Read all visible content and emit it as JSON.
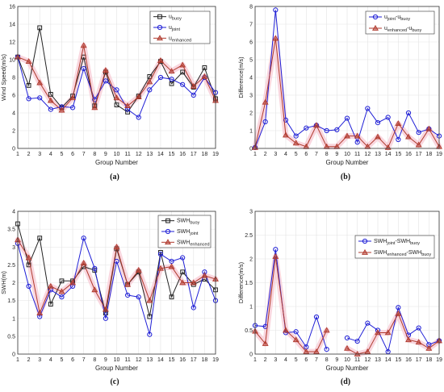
{
  "colors": {
    "buoy": "#222222",
    "joint": "#1f1fd6",
    "enhanced": "#b03a2e",
    "highlight": "#f7c9d4"
  },
  "chart_data": [
    {
      "id": "a",
      "type": "line",
      "panel_label": "(a)",
      "xlabel": "Group Number",
      "ylabel": "Wind Speed(m/s)",
      "x": [
        1,
        2,
        3,
        4,
        5,
        6,
        7,
        8,
        9,
        10,
        11,
        12,
        13,
        14,
        15,
        16,
        17,
        18,
        19
      ],
      "xticks": [
        "1",
        "2",
        "3",
        "4",
        "5",
        "6",
        "7",
        "8",
        "9",
        "10",
        "11",
        "12",
        "13",
        "14",
        "15",
        "16",
        "17",
        "18",
        "19"
      ],
      "xlim": [
        1,
        19
      ],
      "ylim": [
        0,
        16
      ],
      "yticks": [
        "0",
        "2",
        "4",
        "6",
        "8",
        "10",
        "12",
        "14",
        "16"
      ],
      "grid": true,
      "legend_position": "top-right",
      "series": [
        {
          "name": "u",
          "sub": "buoy",
          "key": "buoy",
          "marker": "square",
          "values": [
            10.3,
            7.1,
            13.6,
            6.1,
            4.6,
            5.9,
            10.3,
            4.8,
            8.6,
            4.9,
            4.1,
            5.9,
            8.1,
            9.8,
            7.3,
            8.6,
            6.9,
            9.1,
            5.6
          ]
        },
        {
          "name": "u",
          "sub": "joint",
          "key": "joint",
          "marker": "circle",
          "values": [
            10.3,
            5.6,
            5.7,
            4.4,
            4.7,
            4.6,
            9.0,
            5.5,
            7.6,
            6.6,
            4.4,
            3.5,
            6.6,
            8.0,
            7.8,
            7.2,
            6.0,
            8.0,
            6.3
          ]
        },
        {
          "name": "u",
          "sub": "enhanced",
          "key": "enhanced",
          "marker": "triangle",
          "values": [
            10.3,
            9.8,
            7.4,
            5.4,
            4.3,
            5.7,
            11.6,
            4.6,
            8.8,
            5.7,
            4.8,
            5.8,
            7.5,
            9.9,
            8.7,
            9.4,
            7.0,
            8.1,
            5.4
          ]
        }
      ]
    },
    {
      "id": "b",
      "type": "line",
      "panel_label": "(b)",
      "xlabel": "Group Number",
      "ylabel": "Difference(m/s)",
      "x": [
        1,
        2,
        3,
        4,
        5,
        6,
        7,
        8,
        9,
        10,
        11,
        12,
        13,
        14,
        15,
        16,
        17,
        18,
        19
      ],
      "xticks": [
        "1",
        "2",
        "3",
        "4",
        "5",
        "6",
        "7",
        "8",
        "9",
        "10",
        "11",
        "12",
        "13",
        "14",
        "15",
        "16",
        "17",
        "18",
        "19"
      ],
      "xlim": [
        1,
        19
      ],
      "ylim": [
        0,
        8
      ],
      "yticks": [
        "0",
        "1",
        "2",
        "3",
        "4",
        "5",
        "6",
        "7",
        "8"
      ],
      "grid": true,
      "legend_position": "top-right",
      "series": [
        {
          "name": "u",
          "sub": "joint",
          "sub2": "buoy",
          "key": "joint",
          "marker": "circle",
          "values": [
            0.05,
            1.5,
            7.8,
            1.6,
            0.7,
            1.15,
            1.3,
            1.0,
            1.05,
            1.7,
            0.35,
            2.25,
            1.45,
            1.75,
            0.5,
            2.0,
            0.9,
            1.1,
            0.7
          ]
        },
        {
          "name": "u",
          "sub": "enhanced",
          "sub2": "buoy",
          "key": "enhanced",
          "marker": "triangle",
          "values": [
            0.05,
            2.6,
            6.2,
            0.75,
            0.3,
            0.1,
            1.3,
            0.1,
            0.1,
            0.7,
            0.7,
            0.1,
            0.65,
            0.05,
            1.4,
            0.65,
            0.2,
            1.1,
            0.1
          ]
        }
      ]
    },
    {
      "id": "c",
      "type": "line",
      "panel_label": "(c)",
      "xlabel": "Group Number",
      "ylabel": "SWH(m)",
      "x": [
        1,
        2,
        3,
        4,
        5,
        6,
        7,
        8,
        9,
        10,
        11,
        12,
        13,
        14,
        15,
        16,
        17,
        18,
        19
      ],
      "xticks": [
        "1",
        "2",
        "3",
        "4",
        "5",
        "6",
        "7",
        "8",
        "9",
        "10",
        "11",
        "12",
        "13",
        "14",
        "15",
        "16",
        "17",
        "18",
        "19"
      ],
      "xlim": [
        1,
        19
      ],
      "ylim": [
        0,
        4
      ],
      "yticks": [
        "0",
        "0.5",
        "1",
        "1.5",
        "2",
        "2.5",
        "3",
        "3.5",
        "4"
      ],
      "grid": true,
      "legend_position": "top-right",
      "series": [
        {
          "name": "SWH",
          "sub": "buoy",
          "key": "buoy",
          "marker": "square",
          "values": [
            3.65,
            2.5,
            3.25,
            1.4,
            2.05,
            2.05,
            2.45,
            2.35,
            1.15,
            2.95,
            1.95,
            2.3,
            1.05,
            2.85,
            1.6,
            2.3,
            1.95,
            2.1,
            1.8
          ]
        },
        {
          "name": "SWH",
          "sub": "joint",
          "key": "joint",
          "marker": "circle",
          "values": [
            3.1,
            1.9,
            1.05,
            1.8,
            1.6,
            1.9,
            3.25,
            2.4,
            1.0,
            2.6,
            1.65,
            1.6,
            0.55,
            2.8,
            2.6,
            2.7,
            1.3,
            2.3,
            1.5
          ]
        },
        {
          "name": "SWH",
          "sub": "enhanced",
          "key": "enhanced",
          "marker": "triangle",
          "values": [
            3.2,
            2.7,
            1.15,
            1.9,
            1.75,
            2.0,
            2.55,
            1.8,
            1.25,
            3.0,
            1.95,
            2.35,
            1.5,
            2.4,
            2.45,
            2.0,
            2.0,
            2.2,
            2.1
          ]
        }
      ]
    },
    {
      "id": "d",
      "type": "line",
      "panel_label": "(d)",
      "xlabel": "Group Number",
      "ylabel": "Difference(m/s)",
      "x": [
        1,
        2,
        3,
        4,
        5,
        6,
        7,
        8,
        9,
        10,
        11,
        12,
        13,
        14,
        15,
        16,
        17,
        18,
        19
      ],
      "xticks": [
        "1",
        "2",
        "3",
        "4",
        "5",
        "6",
        "7",
        "8",
        "9",
        "10",
        "11",
        "12",
        "13",
        "14",
        "15",
        "16",
        "17",
        "18",
        "19"
      ],
      "xlim": [
        1,
        19
      ],
      "ylim": [
        0,
        3
      ],
      "yticks": [
        "0",
        "0.5",
        "1",
        "1.5",
        "2",
        "2.5",
        "3"
      ],
      "grid": true,
      "legend_position": "top-right",
      "series": [
        {
          "name": "SWH",
          "sub": "joint",
          "sub2": "buoy",
          "key": "joint",
          "marker": "circle",
          "values": [
            0.6,
            0.58,
            2.2,
            0.45,
            0.47,
            0.15,
            0.78,
            0.1,
            null,
            0.34,
            0.27,
            0.65,
            0.5,
            0.05,
            0.98,
            0.4,
            0.55,
            0.2,
            0.28
          ]
        },
        {
          "name": "SWH",
          "sub": "enhanced",
          "sub2": "buoy",
          "key": "enhanced",
          "marker": "triangle",
          "values": [
            0.48,
            0.22,
            2.05,
            0.5,
            0.3,
            0.05,
            0.05,
            0.5,
            null,
            0.12,
            0.0,
            0.05,
            0.45,
            0.45,
            0.85,
            0.3,
            0.25,
            0.12,
            0.28
          ]
        }
      ]
    }
  ]
}
